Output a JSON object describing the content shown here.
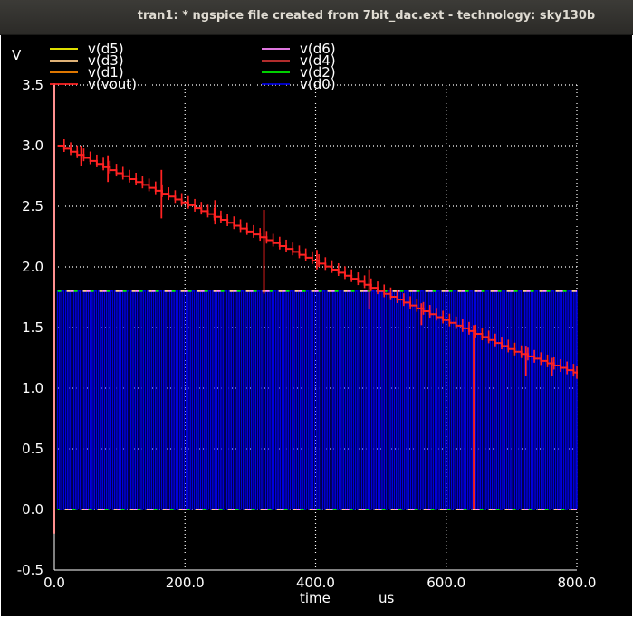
{
  "window": {
    "title": "tran1: * ngspice file created from 7bit_dac.ext - technology: sky130b"
  },
  "chart_data": {
    "type": "line",
    "ylabel": "V",
    "xlabel": "time",
    "xunit": "us",
    "xlim": [
      0,
      800
    ],
    "ylim": [
      -0.5,
      3.5
    ],
    "xticks": [
      "0.0",
      "200.0",
      "400.0",
      "600.0",
      "800.0"
    ],
    "yticks": [
      "-0.5",
      "0.0",
      "0.5",
      "1.0",
      "1.5",
      "2.0",
      "2.5",
      "3.0",
      "3.5"
    ],
    "grid": true,
    "legend": [
      {
        "name": "v(d5)",
        "color": "#ffff00"
      },
      {
        "name": "v(d6)",
        "color": "#ff88ff"
      },
      {
        "name": "v(d3)",
        "color": "#ffcc88"
      },
      {
        "name": "v(d4)",
        "color": "#cc3333"
      },
      {
        "name": "v(d1)",
        "color": "#ff8800"
      },
      {
        "name": "v(d2)",
        "color": "#00ee00"
      },
      {
        "name": "v(vout)",
        "color": "#ff2222"
      },
      {
        "name": "v(d0)",
        "color": "#0000dd"
      }
    ],
    "series": [
      {
        "name": "v(d0)",
        "kind": "square",
        "low": 0,
        "high": 1.8,
        "period_us": 6.25,
        "x_start": 5,
        "x_end": 800
      },
      {
        "name": "v(vout)",
        "kind": "staircase",
        "x": [
          0,
          5,
          5,
          100,
          200,
          300,
          400,
          500,
          600,
          640,
          700,
          800
        ],
        "y": [
          -0.2,
          3.5,
          3.0,
          2.76,
          2.52,
          2.28,
          2.04,
          1.79,
          1.55,
          1.46,
          1.31,
          1.12
        ]
      },
      {
        "name": "v(vout) glitches",
        "kind": "spikes",
        "x": [
          41,
          82,
          164,
          246,
          321,
          402,
          482,
          562,
          642,
          722,
          762
        ],
        "y_low": [
          2.83,
          2.7,
          2.4,
          2.35,
          1.78,
          1.98,
          1.65,
          1.52,
          0.0,
          1.1,
          1.1
        ],
        "y_high": [
          3.0,
          2.92,
          2.8,
          2.55,
          2.47,
          2.14,
          1.98,
          1.7,
          1.52,
          1.35,
          1.25
        ]
      }
    ]
  }
}
